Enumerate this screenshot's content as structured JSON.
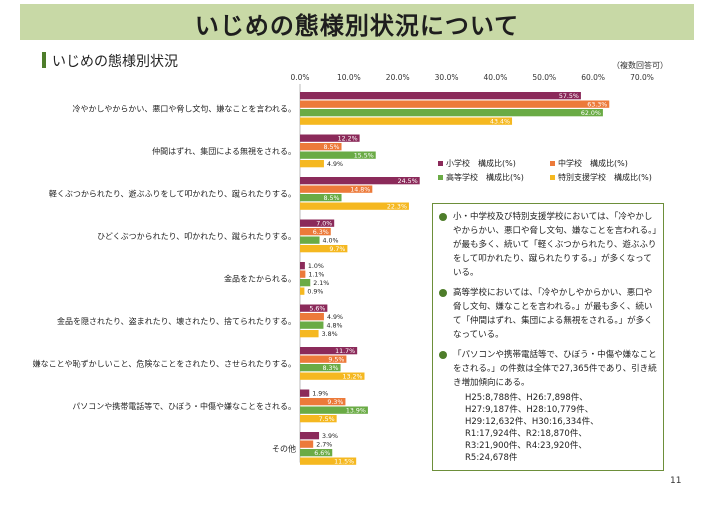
{
  "header": {
    "title": "いじめの態様別状況について"
  },
  "section": {
    "title": "いじめの態様別状況"
  },
  "note": "（複数回答可）",
  "legend": [
    {
      "label": "小学校　構成比(%)",
      "color": "#8b2a5a"
    },
    {
      "label": "中学校　構成比(%)",
      "color": "#ec7a3a"
    },
    {
      "label": "高等学校　構成比(%)",
      "color": "#6aab45"
    },
    {
      "label": "特別支援学校　構成比(%)",
      "color": "#f5b820"
    }
  ],
  "chart_data": {
    "type": "bar",
    "orientation": "horizontal",
    "xlim": [
      0,
      70
    ],
    "x_ticks": [
      "0.0%",
      "10.0%",
      "20.0%",
      "30.0%",
      "40.0%",
      "50.0%",
      "60.0%",
      "70.0%"
    ],
    "categories": [
      "冷やかしやからかい、悪口や脅し文句、嫌なことを言われる。",
      "仲間はずれ、集団による無視をされる。",
      "軽くぶつかられたり、遊ぶふりをして叩かれたり、蹴られたりする。",
      "ひどくぶつかられたり、叩かれたり、蹴られたりする。",
      "金品をたかられる。",
      "金品を隠されたり、盗まれたり、壊されたり、捨てられたりする。",
      "嫌なことや恥ずかしいこと、危険なことをされたり、させられたりする。",
      "パソコンや携帯電話等で、ひぼう・中傷や嫌なことをされる。",
      "その他"
    ],
    "series": [
      {
        "name": "小学校　構成比(%)",
        "values": [
          57.5,
          12.2,
          24.5,
          7.0,
          1.0,
          5.6,
          11.7,
          1.9,
          3.9
        ],
        "labels": [
          "57.5%",
          "12.2%",
          "24.5%",
          "7.0%",
          "1.0%",
          "5.6%",
          "11.7%",
          "1.9%",
          "3.9%"
        ]
      },
      {
        "name": "中学校　構成比(%)",
        "values": [
          63.3,
          8.5,
          14.8,
          6.3,
          1.1,
          4.9,
          9.5,
          9.3,
          2.7
        ],
        "labels": [
          "63.3%",
          "8.5%",
          "14.8%",
          "6.3%",
          "1.1%",
          "4.9%",
          "9.5%",
          "9.3%",
          "2.7%"
        ]
      },
      {
        "name": "高等学校　構成比(%)",
        "values": [
          62.0,
          15.5,
          8.5,
          4.0,
          2.1,
          4.8,
          8.3,
          13.9,
          6.6
        ],
        "labels": [
          "62.0%",
          "15.5%",
          "8.5%",
          "4.0%",
          "2.1%",
          "4.8%",
          "8.3%",
          "13.9%",
          "6.6%"
        ]
      },
      {
        "name": "特別支援学校　構成比(%)",
        "values": [
          43.4,
          4.9,
          22.3,
          9.7,
          0.9,
          3.8,
          13.2,
          7.5,
          11.5
        ],
        "labels": [
          "43.4%",
          "4.9%",
          "22.3%",
          "9.7%",
          "0.9%",
          "3.8%",
          "13.2%",
          "7.5%",
          "11.5%"
        ]
      }
    ]
  },
  "info": {
    "items": [
      "小・中学校及び特別支援学校においては、「冷やかしやからかい、悪口や脅し文句、嫌なことを言われる。」が最も多く、続いて「軽くぶつかられたり、遊ぶふりをして叩かれたり、蹴られたりする。」が多くなっている。",
      "高等学校においては、「冷やかしやからかい、悪口や脅し文句、嫌なことを言われる。」が最も多く、続いて「仲間はずれ、集団による無視をされる。」が多くなっている。",
      "「パソコンや携帯電話等で、ひぼう・中傷や嫌なことをされる。」の件数は全体で27,365件であり、引き続き増加傾向にある。"
    ],
    "counts": [
      "H25:8,788件、H26:7,898件、",
      "H27:9,187件、H28:10,779件、",
      "H29:12,632件、H30:16,334件、",
      "R1:17,924件、R2:18,870件、",
      "R3:21,900件、R4:23,920件、",
      "R5:24,678件"
    ]
  },
  "page_number": "11"
}
